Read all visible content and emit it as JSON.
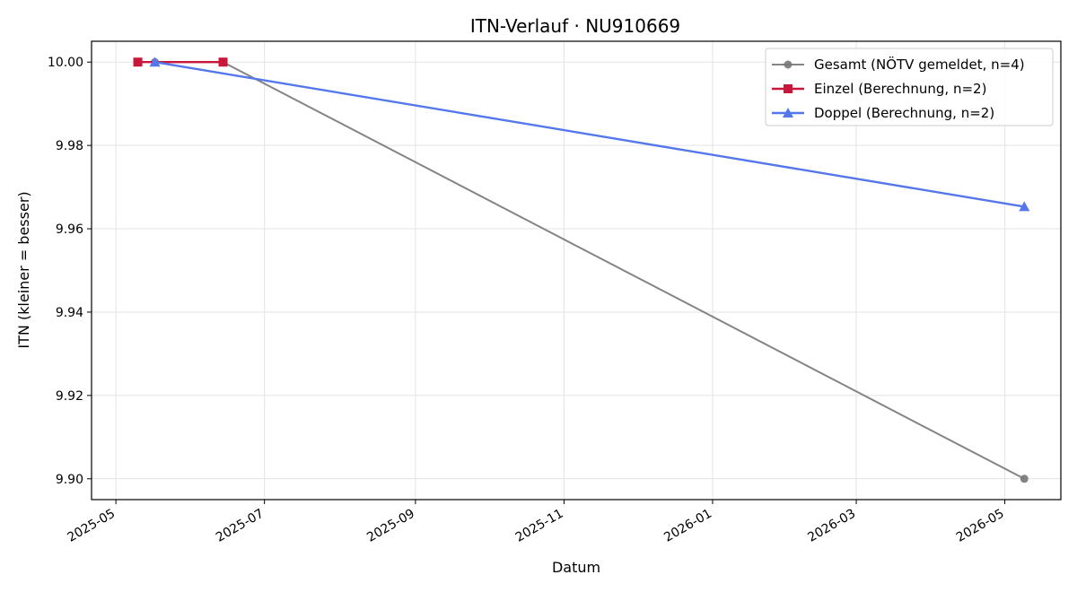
{
  "chart_data": {
    "type": "line",
    "title": "ITN-Verlauf · NU910669",
    "xlabel": "Datum",
    "ylabel": "ITN  (kleiner = besser)",
    "x_ticks": [
      "2025-05",
      "2025-07",
      "2025-09",
      "2025-11",
      "2026-01",
      "2026-03",
      "2026-05"
    ],
    "y_ticks": [
      "9.90",
      "9.92",
      "9.94",
      "9.96",
      "9.98",
      "10.00"
    ],
    "xlim": [
      "2025-04-21",
      "2026-05-24"
    ],
    "ylim": [
      9.895,
      10.005
    ],
    "grid": true,
    "legend_position": "top-right",
    "series": [
      {
        "name": "Gesamt (NÖTV gemeldet, n=4)",
        "color": "#777777",
        "marker": "circle",
        "points": [
          {
            "x": "2025-05-17",
            "y": 10.0
          },
          {
            "x": "2025-06-14",
            "y": 10.0
          },
          {
            "x": "2026-05-09",
            "y": 9.9
          }
        ]
      },
      {
        "name": "Einzel (Berechnung, n=2)",
        "color": "#c8173a",
        "marker": "square",
        "points": [
          {
            "x": "2025-05-10",
            "y": 10.0
          },
          {
            "x": "2025-06-14",
            "y": 10.0
          }
        ]
      },
      {
        "name": "Doppel (Berechnung, n=2)",
        "color": "#5577ee",
        "marker": "triangle",
        "points": [
          {
            "x": "2025-05-17",
            "y": 10.0
          },
          {
            "x": "2026-05-09",
            "y": 9.9653
          }
        ]
      }
    ]
  }
}
